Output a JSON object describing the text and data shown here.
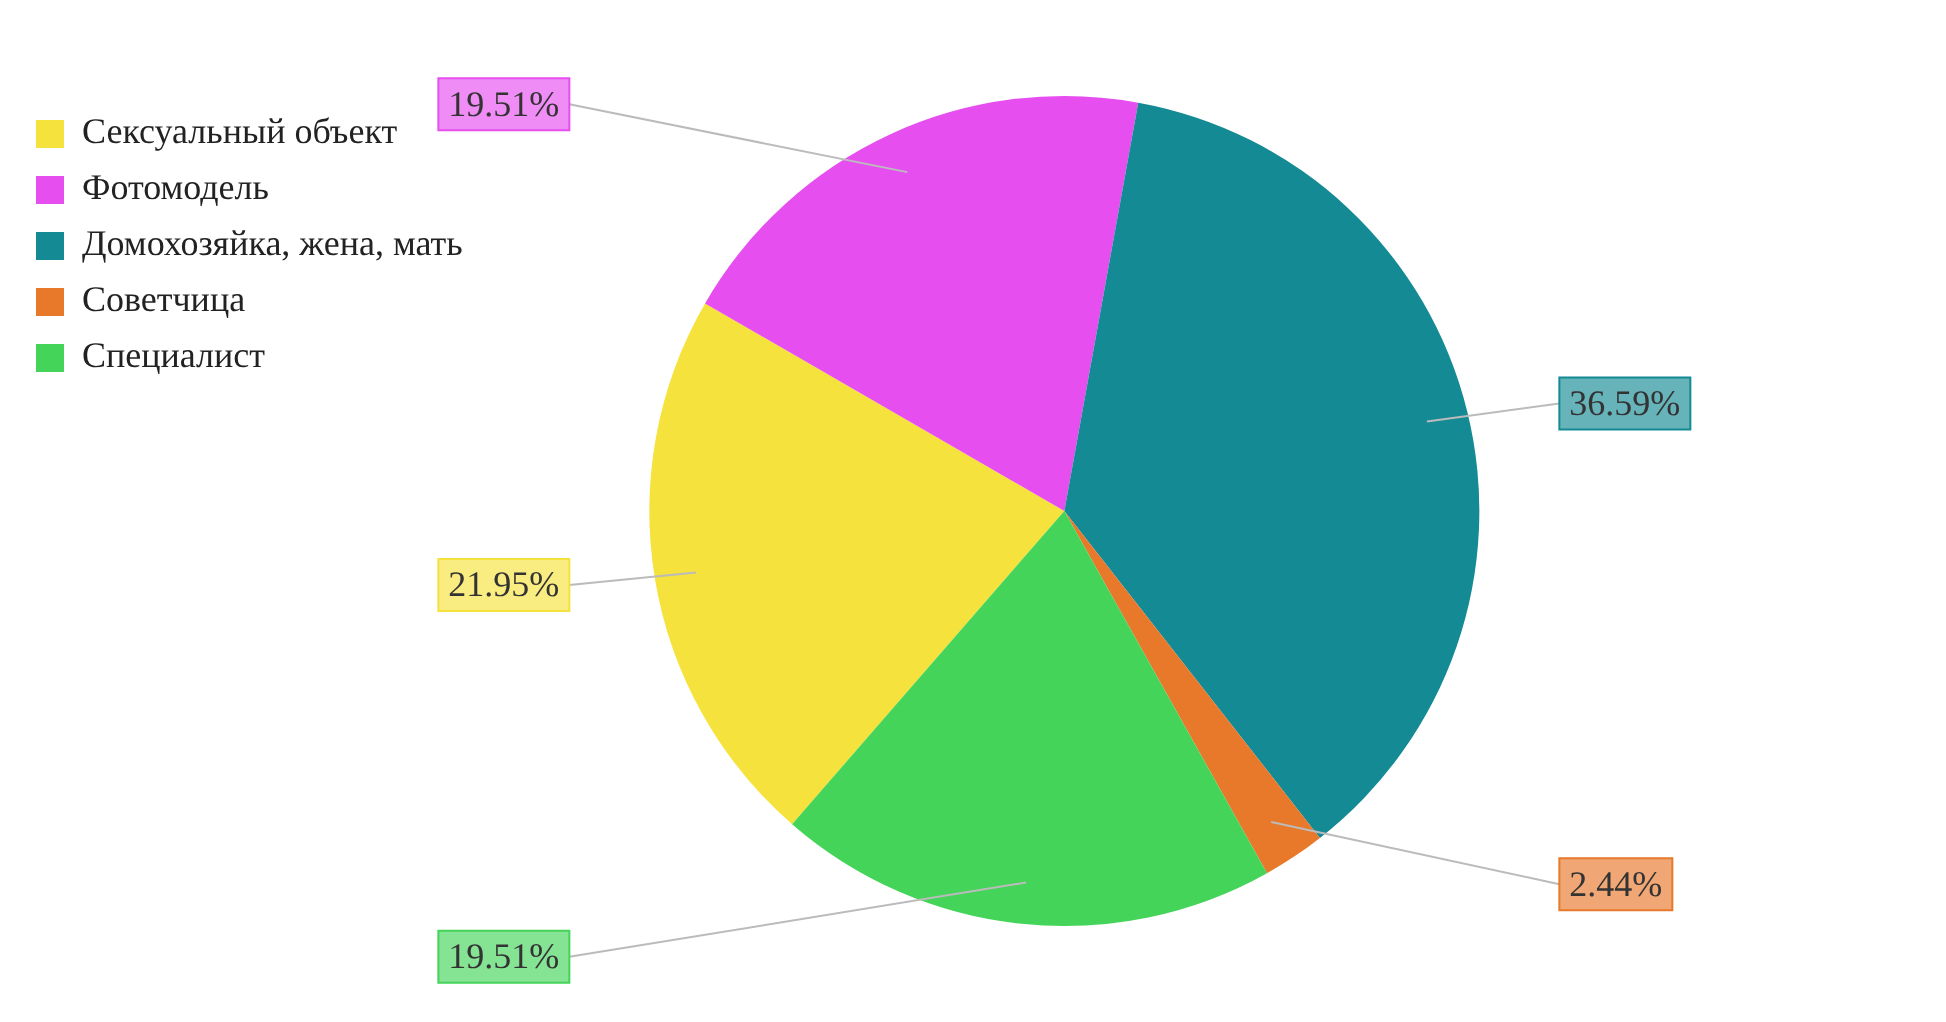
{
  "chart_data": {
    "type": "pie",
    "categories": [
      "Сексуальный объект",
      "Фотомодель",
      "Домохозяйка, жена, мать",
      "Советчица",
      "Специалист"
    ],
    "values": [
      21.95,
      19.51,
      36.59,
      2.44,
      19.51
    ],
    "colors": [
      "#f5e23c",
      "#e64ef0",
      "#138a94",
      "#e8782a",
      "#44d45a"
    ],
    "value_labels": [
      "21.95%",
      "19.51%",
      "36.59%",
      "2.44%",
      "19.51%"
    ],
    "legend": "top left"
  }
}
